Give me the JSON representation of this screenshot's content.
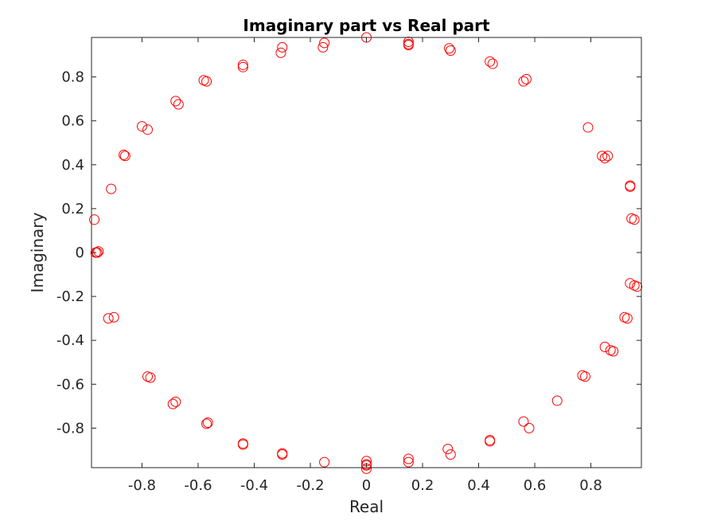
{
  "chart_data": {
    "type": "scatter",
    "title": "Imaginary part vs Real part",
    "xlabel": "Real",
    "ylabel": "Imaginary",
    "xlim": [
      -0.98,
      0.98
    ],
    "ylim": [
      -0.98,
      0.98
    ],
    "xticks": [
      -0.8,
      -0.6,
      -0.4,
      -0.2,
      0,
      0.2,
      0.4,
      0.6,
      0.8
    ],
    "yticks": [
      -0.8,
      -0.6,
      -0.4,
      -0.2,
      0,
      0.2,
      0.4,
      0.6,
      0.8
    ],
    "xtick_labels": [
      "-0.8",
      "-0.6",
      "-0.4",
      "-0.2",
      "0",
      "0.2",
      "0.4",
      "0.6",
      "0.8"
    ],
    "ytick_labels": [
      "-0.8",
      "-0.6",
      "-0.4",
      "-0.2",
      "0",
      "0.2",
      "0.4",
      "0.6",
      "0.8"
    ],
    "grid": false,
    "marker": "circle-open",
    "marker_color": "#ff0000",
    "x": [
      0,
      0.15,
      0.15,
      0.15,
      0.295,
      0.3,
      0.44,
      0.45,
      0.56,
      0.57,
      0.79,
      0.84,
      0.85,
      0.86,
      0.94,
      0.94,
      0.945,
      0.955,
      0.94,
      0.955,
      0.965,
      0.92,
      0.93,
      0.85,
      0.87,
      0.88,
      0.78,
      0.77,
      0.68,
      0.58,
      0.56,
      0.44,
      0.44,
      0.3,
      0.29,
      0.15,
      0.15,
      0,
      0,
      0,
      0,
      -0.15,
      -0.3,
      -0.3,
      -0.44,
      -0.44,
      -0.565,
      -0.57,
      -0.68,
      -0.69,
      -0.78,
      -0.77,
      -0.9,
      -0.92,
      -0.96,
      -0.955,
      -0.965,
      -0.96,
      -0.97,
      -0.91,
      -0.8,
      -0.78,
      -0.86,
      -0.865,
      -0.68,
      -0.67,
      -0.58,
      -0.57,
      -0.44,
      -0.44,
      -0.3,
      -0.305,
      -0.15,
      -0.155
    ],
    "y": [
      0.98,
      0.96,
      0.95,
      0.945,
      0.93,
      0.92,
      0.87,
      0.86,
      0.78,
      0.79,
      0.57,
      0.44,
      0.43,
      0.44,
      0.305,
      0.3,
      0.155,
      0.15,
      -0.14,
      -0.15,
      -0.155,
      -0.295,
      -0.3,
      -0.43,
      -0.445,
      -0.45,
      -0.565,
      -0.56,
      -0.675,
      -0.8,
      -0.77,
      -0.86,
      -0.855,
      -0.92,
      -0.895,
      -0.94,
      -0.955,
      -0.95,
      -0.965,
      -0.97,
      -0.985,
      -0.955,
      -0.915,
      -0.92,
      -0.87,
      -0.875,
      -0.775,
      -0.78,
      -0.68,
      -0.69,
      -0.565,
      -0.57,
      -0.295,
      -0.3,
      0,
      0.005,
      0,
      0,
      0.15,
      0.29,
      0.575,
      0.56,
      0.44,
      0.445,
      0.69,
      0.675,
      0.785,
      0.78,
      0.855,
      0.845,
      0.935,
      0.91,
      0.955,
      0.935
    ]
  }
}
